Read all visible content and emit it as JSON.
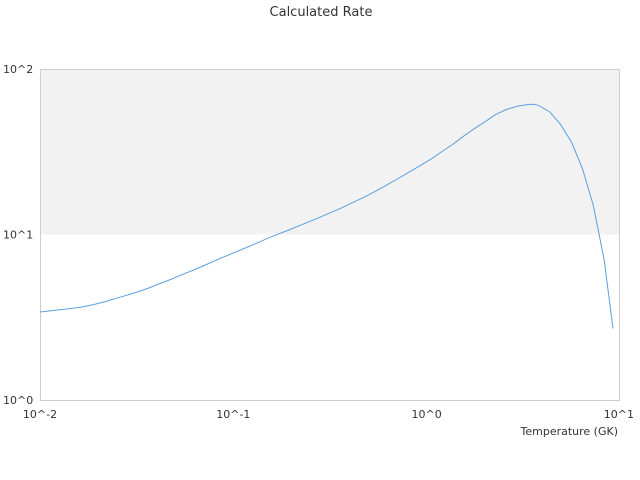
{
  "chart_data": {
    "type": "line",
    "title": "Calculated Rate",
    "xlabel": "Temperature (GK)",
    "ylabel": "",
    "x_scale": "log",
    "y_scale": "log",
    "xlim": [
      0.01,
      10
    ],
    "ylim": [
      1,
      100
    ],
    "x_ticks": [
      {
        "value": 0.01,
        "label": "10^-2"
      },
      {
        "value": 0.1,
        "label": "10^-1"
      },
      {
        "value": 1,
        "label": "10^0"
      },
      {
        "value": 10,
        "label": "10^1"
      }
    ],
    "y_ticks": [
      {
        "value": 1,
        "label": "10^0"
      },
      {
        "value": 10,
        "label": "10^1"
      },
      {
        "value": 100,
        "label": "10^2"
      }
    ],
    "grid": false,
    "band": {
      "y_from": 10,
      "y_to": 100,
      "color": "#f2f2f2"
    },
    "colors": {
      "line": "#5b9fde",
      "axis": "#cccccc",
      "text": "#333333"
    },
    "series": [
      {
        "points": [
          [
            0.01,
            3.4
          ],
          [
            0.0114,
            3.46
          ],
          [
            0.013,
            3.52
          ],
          [
            0.0148,
            3.58
          ],
          [
            0.0168,
            3.66
          ],
          [
            0.0191,
            3.78
          ],
          [
            0.0218,
            3.93
          ],
          [
            0.0248,
            4.12
          ],
          [
            0.0282,
            4.3
          ],
          [
            0.0321,
            4.5
          ],
          [
            0.0365,
            4.75
          ],
          [
            0.0416,
            5.05
          ],
          [
            0.0473,
            5.35
          ],
          [
            0.0538,
            5.7
          ],
          [
            0.0612,
            6.05
          ],
          [
            0.0697,
            6.45
          ],
          [
            0.0793,
            6.9
          ],
          [
            0.0902,
            7.35
          ],
          [
            0.103,
            7.85
          ],
          [
            0.117,
            8.35
          ],
          [
            0.133,
            8.9
          ],
          [
            0.151,
            9.5
          ],
          [
            0.172,
            10.1
          ],
          [
            0.196,
            10.7
          ],
          [
            0.223,
            11.4
          ],
          [
            0.253,
            12.1
          ],
          [
            0.289,
            12.9
          ],
          [
            0.328,
            13.75
          ],
          [
            0.373,
            14.7
          ],
          [
            0.425,
            15.8
          ],
          [
            0.483,
            17.0
          ],
          [
            0.55,
            18.4
          ],
          [
            0.626,
            20.0
          ],
          [
            0.712,
            21.8
          ],
          [
            0.81,
            23.8
          ],
          [
            0.922,
            26.0
          ],
          [
            1.05,
            28.5
          ],
          [
            1.19,
            31.5
          ],
          [
            1.36,
            35.0
          ],
          [
            1.54,
            39.0
          ],
          [
            1.76,
            43.5
          ],
          [
            2.0,
            48.0
          ],
          [
            2.27,
            53.0
          ],
          [
            2.59,
            57.0
          ],
          [
            2.94,
            59.5
          ],
          [
            3.35,
            61.0
          ],
          [
            3.6,
            61.3
          ],
          [
            3.81,
            60.0
          ],
          [
            4.34,
            55.0
          ],
          [
            4.94,
            46.0
          ],
          [
            5.62,
            36.0
          ],
          [
            6.39,
            25.0
          ],
          [
            7.28,
            15.0
          ],
          [
            8.28,
            7.0
          ],
          [
            9.2,
            2.7
          ]
        ]
      }
    ]
  }
}
